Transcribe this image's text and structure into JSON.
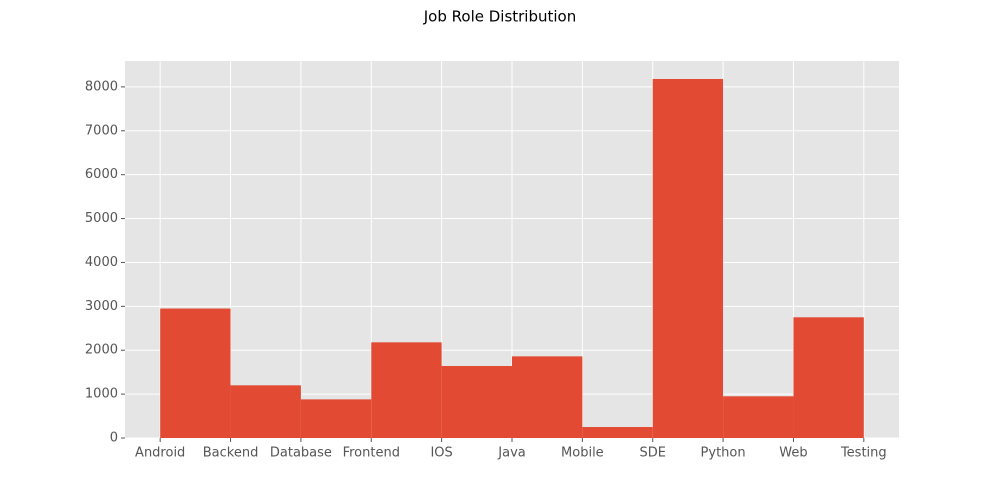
{
  "chart_data": {
    "type": "histogram",
    "title": "Job Role Distribution",
    "bins": [
      0,
      1,
      2,
      3,
      4,
      5,
      6,
      7,
      8,
      9,
      10
    ],
    "counts": [
      2950,
      1200,
      880,
      2180,
      1640,
      1860,
      250,
      8180,
      950,
      2750
    ],
    "color": "#E24A33",
    "xlim": [
      -0.5,
      10.5
    ],
    "xticks": [
      {
        "value": 0,
        "label": "Android"
      },
      {
        "value": 1,
        "label": "Backend"
      },
      {
        "value": 2,
        "label": "Database"
      },
      {
        "value": 3,
        "label": "Frontend"
      },
      {
        "value": 4,
        "label": "IOS"
      },
      {
        "value": 5,
        "label": "Java"
      },
      {
        "value": 6,
        "label": "Mobile"
      },
      {
        "value": 7,
        "label": "SDE"
      },
      {
        "value": 8,
        "label": "Python"
      },
      {
        "value": 9,
        "label": "Web"
      },
      {
        "value": 10,
        "label": "Testing"
      }
    ],
    "ylim": [
      0,
      8590
    ],
    "yticks": [
      0,
      1000,
      2000,
      3000,
      4000,
      5000,
      6000,
      7000,
      8000
    ],
    "grid": true
  }
}
